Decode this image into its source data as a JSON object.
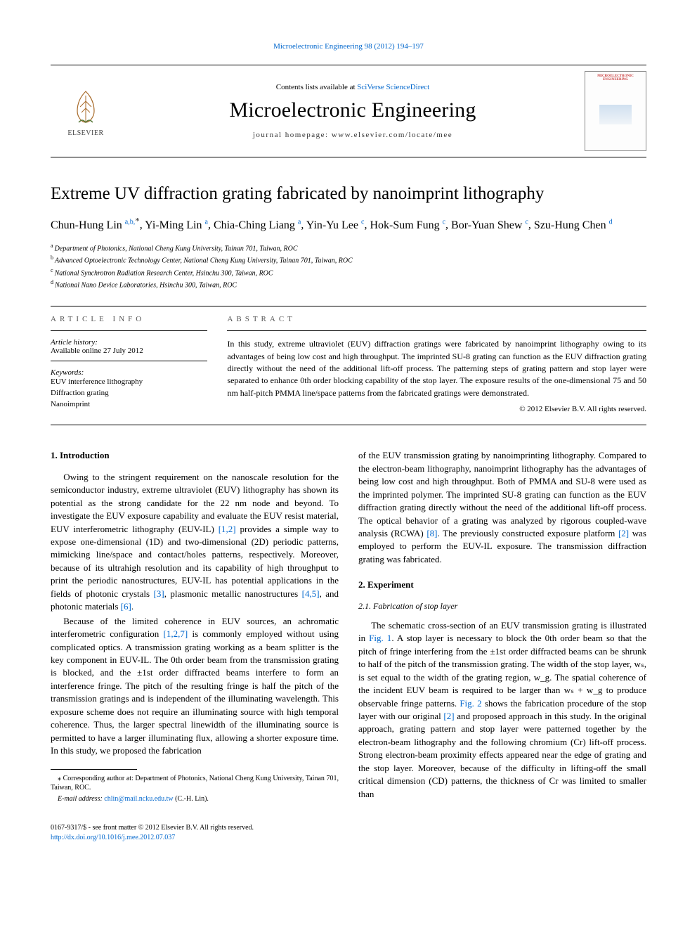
{
  "top_citation": "Microelectronic Engineering 98 (2012) 194–197",
  "header": {
    "contents_prefix": "Contents lists available at ",
    "contents_link": "SciVerse ScienceDirect",
    "journal_name": "Microelectronic Engineering",
    "homepage_prefix": "journal homepage: ",
    "homepage_url": "www.elsevier.com/locate/mee",
    "publisher_logo_text": "ELSEVIER",
    "cover_label": "MICROELECTRONIC ENGINEERING"
  },
  "article": {
    "title": "Extreme UV diffraction grating fabricated by nanoimprint lithography",
    "authors_html": "Chun-Hung Lin|a,b,*|, Yi-Ming Lin|a|, Chia-Ching Liang|a|, Yin-Yu Lee|c|, Hok-Sum Fung|c|, Bor-Yuan Shew|c|, Szu-Hung Chen|d|",
    "authors": [
      {
        "name": "Chun-Hung Lin",
        "sups": "a,b,",
        "star": true
      },
      {
        "name": "Yi-Ming Lin",
        "sups": "a"
      },
      {
        "name": "Chia-Ching Liang",
        "sups": "a"
      },
      {
        "name": "Yin-Yu Lee",
        "sups": "c"
      },
      {
        "name": "Hok-Sum Fung",
        "sups": "c"
      },
      {
        "name": "Bor-Yuan Shew",
        "sups": "c"
      },
      {
        "name": "Szu-Hung Chen",
        "sups": "d"
      }
    ],
    "affiliations": [
      {
        "key": "a",
        "text": "Department of Photonics, National Cheng Kung University, Tainan 701, Taiwan, ROC"
      },
      {
        "key": "b",
        "text": "Advanced Optoelectronic Technology Center, National Cheng Kung University, Tainan 701, Taiwan, ROC"
      },
      {
        "key": "c",
        "text": "National Synchrotron Radiation Research Center, Hsinchu 300, Taiwan, ROC"
      },
      {
        "key": "d",
        "text": "National Nano Device Laboratories, Hsinchu 300, Taiwan, ROC"
      }
    ]
  },
  "info": {
    "heading": "article info",
    "history_label": "Article history:",
    "history_text": "Available online 27 July 2012",
    "keywords_label": "Keywords:",
    "keywords": [
      "EUV interference lithography",
      "Diffraction grating",
      "Nanoimprint"
    ]
  },
  "abstract": {
    "heading": "abstract",
    "text": "In this study, extreme ultraviolet (EUV) diffraction gratings were fabricated by nanoimprint lithography owing to its advantages of being low cost and high throughput. The imprinted SU-8 grating can function as the EUV diffraction grating directly without the need of the additional lift-off process. The patterning steps of grating pattern and stop layer were separated to enhance 0th order blocking capability of the stop layer. The exposure results of the one-dimensional 75 and 50 nm half-pitch PMMA line/space patterns from the fabricated gratings were demonstrated.",
    "copyright": "© 2012 Elsevier B.V. All rights reserved."
  },
  "body": {
    "s1_heading": "1. Introduction",
    "s1_p1": "Owing to the stringent requirement on the nanoscale resolution for the semiconductor industry, extreme ultraviolet (EUV) lithography has shown its potential as the strong candidate for the 22 nm node and beyond. To investigate the EUV exposure capability and evaluate the EUV resist material, EUV interferometric lithography (EUV-IL) ",
    "s1_p1_c1": "[1,2]",
    "s1_p1b": " provides a simple way to expose one-dimensional (1D) and two-dimensional (2D) periodic patterns, mimicking line/space and contact/holes patterns, respectively. Moreover, because of its ultrahigh resolution and its capability of high throughput to print the periodic nanostructures, EUV-IL has potential applications in the fields of photonic crystals ",
    "s1_p1_c2": "[3]",
    "s1_p1c": ", plasmonic metallic nanostructures ",
    "s1_p1_c3": "[4,5]",
    "s1_p1d": ", and photonic materials ",
    "s1_p1_c4": "[6]",
    "s1_p1e": ".",
    "s1_p2a": "Because of the limited coherence in EUV sources, an achromatic interferometric configuration ",
    "s1_p2_c1": "[1,2,7]",
    "s1_p2b": " is commonly employed without using complicated optics. A transmission grating working as a beam splitter is the key component in EUV-IL. The 0th order beam from the transmission grating is blocked, and the ±1st order diffracted beams interfere to form an interference fringe. The pitch of the resulting fringe is half the pitch of the transmission gratings and is independent of the illuminating wavelength. This exposure scheme does not require an illuminating source with high temporal coherence. Thus, the larger spectral linewidth of the illuminating source is permitted to have a larger illuminating flux, allowing a shorter exposure time. In this study, we proposed the fabrication",
    "s1_p3a": "of the EUV transmission grating by nanoimprinting lithography. Compared to the electron-beam lithography, nanoimprint lithography has the advantages of being low cost and high throughput. Both of PMMA and SU-8 were used as the imprinted polymer. The imprinted SU-8 grating can function as the EUV diffraction grating directly without the need of the additional lift-off process. The optical behavior of a grating was analyzed by rigorous coupled-wave analysis (RCWA) ",
    "s1_p3_c1": "[8]",
    "s1_p3b": ". The previously constructed exposure platform ",
    "s1_p3_c2": "[2]",
    "s1_p3c": " was employed to perform the EUV-IL exposure. The transmission diffraction grating was fabricated.",
    "s2_heading": "2. Experiment",
    "s21_heading": "2.1. Fabrication of stop layer",
    "s21_p1a": "The schematic cross-section of an EUV transmission grating is illustrated in ",
    "s21_p1_f1": "Fig. 1",
    "s21_p1b": ". A stop layer is necessary to block the 0th order beam so that the pitch of fringe interfering from the ±1st order diffracted beams can be shrunk to half of the pitch of the transmission grating. The width of the stop layer, wₛ, is set equal to the width of the grating region, w_g. The spatial coherence of the incident EUV beam is required to be larger than wₛ + w_g to produce observable fringe patterns. ",
    "s21_p1_f2": "Fig. 2",
    "s21_p1c": " shows the fabrication procedure of the stop layer with our original ",
    "s21_p1_c1": "[2]",
    "s21_p1d": " and proposed approach in this study. In the original approach, grating pattern and stop layer were patterned together by the electron-beam lithography and the following chromium (Cr) lift-off process. Strong electron-beam proximity effects appeared near the edge of grating and the stop layer. Moreover, because of the difficulty in lifting-off the small critical dimension (CD) patterns, the thickness of Cr was limited to smaller than"
  },
  "footnotes": {
    "corr_label": "⁎ Corresponding author at: Department of Photonics, National Cheng Kung University, Tainan 701, Taiwan, ROC.",
    "email_label": "E-mail address: ",
    "email": "chlin@mail.ncku.edu.tw",
    "email_suffix": " (C.-H. Lin)."
  },
  "bottom": {
    "issn_line": "0167-9317/$ - see front matter © 2012 Elsevier B.V. All rights reserved.",
    "doi": "http://dx.doi.org/10.1016/j.mee.2012.07.037"
  },
  "colors": {
    "link": "#0066cc",
    "text": "#000000",
    "logo_orange": "#ff7a00",
    "cover_red": "#c93a3a"
  }
}
